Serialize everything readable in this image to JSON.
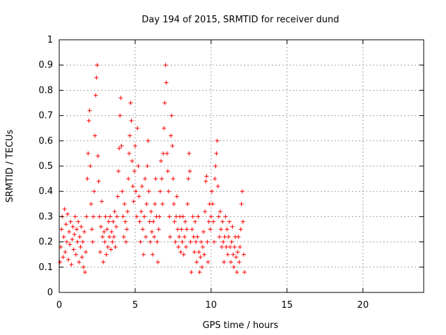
{
  "chart_data": {
    "type": "scatter",
    "title": "Day 194 of 2015, SRMTID for receiver dund",
    "xlabel": "GPS time / hours",
    "ylabel": "SRMTID / TECUs",
    "xlim": [
      0,
      24
    ],
    "ylim": [
      0,
      1
    ],
    "xticks": [
      0,
      5,
      10,
      15,
      20
    ],
    "xtick_labels": [
      "0",
      "5",
      "10",
      "15",
      "20"
    ],
    "yticks": [
      0,
      0.1,
      0.2,
      0.3,
      0.4,
      0.5,
      0.6,
      0.7,
      0.8,
      0.9,
      1
    ],
    "ytick_labels": [
      "0",
      "0.1",
      "0.2",
      "0.3",
      "0.4",
      "0.5",
      "0.6",
      "0.7",
      "0.8",
      "0.9",
      "1"
    ],
    "grid": true,
    "marker": "+",
    "color": "#ff0000",
    "series": [
      {
        "points": [
          [
            0.05,
            0.12
          ],
          [
            0.1,
            0.18
          ],
          [
            0.15,
            0.25
          ],
          [
            0.2,
            0.3
          ],
          [
            0.25,
            0.14
          ],
          [
            0.3,
            0.22
          ],
          [
            0.35,
            0.33
          ],
          [
            0.4,
            0.16
          ],
          [
            0.45,
            0.27
          ],
          [
            0.5,
            0.2
          ],
          [
            0.55,
            0.31
          ],
          [
            0.6,
            0.13
          ],
          [
            0.65,
            0.24
          ],
          [
            0.7,
            0.19
          ],
          [
            0.75,
            0.28
          ],
          [
            0.8,
            0.11
          ],
          [
            0.85,
            0.21
          ],
          [
            0.9,
            0.26
          ],
          [
            0.95,
            0.17
          ],
          [
            1.0,
            0.23
          ],
          [
            1.05,
            0.3
          ],
          [
            1.1,
            0.15
          ],
          [
            1.15,
            0.25
          ],
          [
            1.2,
            0.2
          ],
          [
            1.25,
            0.28
          ],
          [
            1.3,
            0.12
          ],
          [
            1.35,
            0.22
          ],
          [
            1.4,
            0.18
          ],
          [
            1.45,
            0.26
          ],
          [
            1.5,
            0.14
          ],
          [
            1.55,
            0.2
          ],
          [
            1.6,
            0.1
          ],
          [
            1.65,
            0.24
          ],
          [
            1.7,
            0.08
          ],
          [
            1.75,
            0.16
          ],
          [
            1.8,
            0.3
          ],
          [
            1.85,
            0.45
          ],
          [
            1.9,
            0.55
          ],
          [
            1.95,
            0.68
          ],
          [
            2.0,
            0.72
          ],
          [
            2.05,
            0.5
          ],
          [
            2.1,
            0.35
          ],
          [
            2.15,
            0.25
          ],
          [
            2.2,
            0.2
          ],
          [
            2.25,
            0.3
          ],
          [
            2.3,
            0.4
          ],
          [
            2.35,
            0.62
          ],
          [
            2.4,
            0.78
          ],
          [
            2.45,
            0.85
          ],
          [
            2.5,
            0.9
          ],
          [
            2.55,
            0.54
          ],
          [
            2.6,
            0.44
          ],
          [
            2.65,
            0.3
          ],
          [
            2.7,
            0.16
          ],
          [
            2.75,
            0.26
          ],
          [
            2.8,
            0.36
          ],
          [
            2.85,
            0.22
          ],
          [
            2.9,
            0.12
          ],
          [
            2.95,
            0.24
          ],
          [
            3.0,
            0.2
          ],
          [
            3.05,
            0.3
          ],
          [
            3.1,
            0.15
          ],
          [
            3.15,
            0.25
          ],
          [
            3.2,
            0.18
          ],
          [
            3.25,
            0.28
          ],
          [
            3.3,
            0.22
          ],
          [
            3.35,
            0.3
          ],
          [
            3.4,
            0.17
          ],
          [
            3.45,
            0.24
          ],
          [
            3.5,
            0.2
          ],
          [
            3.55,
            0.28
          ],
          [
            3.6,
            0.22
          ],
          [
            3.65,
            0.32
          ],
          [
            3.7,
            0.18
          ],
          [
            3.75,
            0.26
          ],
          [
            3.8,
            0.3
          ],
          [
            3.85,
            0.38
          ],
          [
            3.9,
            0.48
          ],
          [
            3.95,
            0.57
          ],
          [
            4.0,
            0.7
          ],
          [
            4.05,
            0.77
          ],
          [
            4.1,
            0.58
          ],
          [
            4.15,
            0.4
          ],
          [
            4.2,
            0.3
          ],
          [
            4.25,
            0.22
          ],
          [
            4.3,
            0.35
          ],
          [
            4.35,
            0.28
          ],
          [
            4.4,
            0.2
          ],
          [
            4.45,
            0.25
          ],
          [
            4.5,
            0.32
          ],
          [
            4.55,
            0.45
          ],
          [
            4.6,
            0.55
          ],
          [
            4.65,
            0.62
          ],
          [
            4.7,
            0.75
          ],
          [
            4.75,
            0.68
          ],
          [
            4.8,
            0.52
          ],
          [
            4.85,
            0.42
          ],
          [
            4.9,
            0.36
          ],
          [
            4.95,
            0.48
          ],
          [
            5.0,
            0.58
          ],
          [
            5.05,
            0.4
          ],
          [
            5.1,
            0.3
          ],
          [
            5.15,
            0.65
          ],
          [
            5.2,
            0.5
          ],
          [
            5.25,
            0.38
          ],
          [
            5.3,
            0.28
          ],
          [
            5.35,
            0.2
          ],
          [
            5.4,
            0.32
          ],
          [
            5.45,
            0.42
          ],
          [
            5.5,
            0.25
          ],
          [
            5.55,
            0.15
          ],
          [
            5.6,
            0.3
          ],
          [
            5.65,
            0.45
          ],
          [
            5.7,
            0.22
          ],
          [
            5.75,
            0.35
          ],
          [
            5.8,
            0.5
          ],
          [
            5.85,
            0.6
          ],
          [
            5.9,
            0.4
          ],
          [
            5.95,
            0.28
          ],
          [
            6.0,
            0.2
          ],
          [
            6.05,
            0.32
          ],
          [
            6.1,
            0.24
          ],
          [
            6.15,
            0.15
          ],
          [
            6.2,
            0.28
          ],
          [
            6.25,
            0.22
          ],
          [
            6.3,
            0.35
          ],
          [
            6.35,
            0.45
          ],
          [
            6.4,
            0.3
          ],
          [
            6.45,
            0.2
          ],
          [
            6.5,
            0.12
          ],
          [
            6.55,
            0.25
          ],
          [
            6.6,
            0.3
          ],
          [
            6.65,
            0.4
          ],
          [
            6.7,
            0.52
          ],
          [
            6.75,
            0.45
          ],
          [
            6.8,
            0.35
          ],
          [
            6.85,
            0.55
          ],
          [
            6.9,
            0.65
          ],
          [
            6.95,
            0.75
          ],
          [
            7.0,
            0.9
          ],
          [
            7.05,
            0.83
          ],
          [
            7.1,
            0.55
          ],
          [
            7.15,
            0.48
          ],
          [
            7.2,
            0.4
          ],
          [
            7.25,
            0.3
          ],
          [
            7.3,
            0.22
          ],
          [
            7.35,
            0.62
          ],
          [
            7.4,
            0.7
          ],
          [
            7.45,
            0.58
          ],
          [
            7.5,
            0.45
          ],
          [
            7.55,
            0.35
          ],
          [
            7.6,
            0.28
          ],
          [
            7.65,
            0.2
          ],
          [
            7.7,
            0.3
          ],
          [
            7.75,
            0.38
          ],
          [
            7.8,
            0.25
          ],
          [
            7.85,
            0.18
          ],
          [
            7.9,
            0.22
          ],
          [
            7.95,
            0.3
          ],
          [
            8.0,
            0.16
          ],
          [
            8.05,
            0.25
          ],
          [
            8.1,
            0.2
          ],
          [
            8.15,
            0.3
          ],
          [
            8.2,
            0.15
          ],
          [
            8.25,
            0.22
          ],
          [
            8.3,
            0.28
          ],
          [
            8.35,
            0.18
          ],
          [
            8.4,
            0.25
          ],
          [
            8.45,
            0.35
          ],
          [
            8.5,
            0.45
          ],
          [
            8.55,
            0.55
          ],
          [
            8.6,
            0.48
          ],
          [
            8.65,
            0.2
          ],
          [
            8.7,
            0.08
          ],
          [
            8.75,
            0.25
          ],
          [
            8.8,
            0.3
          ],
          [
            8.85,
            0.22
          ],
          [
            8.9,
            0.16
          ],
          [
            8.95,
            0.28
          ],
          [
            9.0,
            0.2
          ],
          [
            9.05,
            0.12
          ],
          [
            9.1,
            0.22
          ],
          [
            9.15,
            0.3
          ],
          [
            9.2,
            0.16
          ],
          [
            9.25,
            0.08
          ],
          [
            9.3,
            0.14
          ],
          [
            9.35,
            0.2
          ],
          [
            9.4,
            0.1
          ],
          [
            9.45,
            0.18
          ],
          [
            9.5,
            0.24
          ],
          [
            9.55,
            0.15
          ],
          [
            9.6,
            0.32
          ],
          [
            9.65,
            0.44
          ],
          [
            9.7,
            0.46
          ],
          [
            9.75,
            0.2
          ],
          [
            9.8,
            0.12
          ],
          [
            9.85,
            0.28
          ],
          [
            9.9,
            0.35
          ],
          [
            9.95,
            0.25
          ],
          [
            10.0,
            0.3
          ],
          [
            10.05,
            0.4
          ],
          [
            10.1,
            0.35
          ],
          [
            10.15,
            0.28
          ],
          [
            10.2,
            0.2
          ],
          [
            10.25,
            0.45
          ],
          [
            10.3,
            0.5
          ],
          [
            10.35,
            0.55
          ],
          [
            10.4,
            0.6
          ],
          [
            10.45,
            0.42
          ],
          [
            10.5,
            0.3
          ],
          [
            10.55,
            0.22
          ],
          [
            10.6,
            0.32
          ],
          [
            10.65,
            0.25
          ],
          [
            10.7,
            0.18
          ],
          [
            10.75,
            0.28
          ],
          [
            10.8,
            0.2
          ],
          [
            10.85,
            0.12
          ],
          [
            10.9,
            0.22
          ],
          [
            10.95,
            0.3
          ],
          [
            11.0,
            0.18
          ],
          [
            11.05,
            0.25
          ],
          [
            11.1,
            0.15
          ],
          [
            11.15,
            0.22
          ],
          [
            11.2,
            0.28
          ],
          [
            11.25,
            0.18
          ],
          [
            11.3,
            0.12
          ],
          [
            11.35,
            0.2
          ],
          [
            11.4,
            0.26
          ],
          [
            11.45,
            0.15
          ],
          [
            11.5,
            0.1
          ],
          [
            11.55,
            0.18
          ],
          [
            11.6,
            0.22
          ],
          [
            11.65,
            0.14
          ],
          [
            11.7,
            0.08
          ],
          [
            11.75,
            0.16
          ],
          [
            11.8,
            0.22
          ],
          [
            11.85,
            0.12
          ],
          [
            11.9,
            0.18
          ],
          [
            11.95,
            0.25
          ],
          [
            12.0,
            0.35
          ],
          [
            12.05,
            0.4
          ],
          [
            12.1,
            0.28
          ],
          [
            12.15,
            0.15
          ],
          [
            12.2,
            0.08
          ]
        ]
      }
    ]
  }
}
